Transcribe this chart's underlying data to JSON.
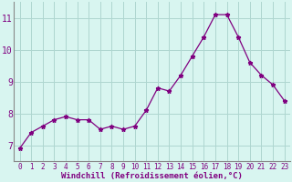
{
  "x": [
    0,
    1,
    2,
    3,
    4,
    5,
    6,
    7,
    8,
    9,
    10,
    11,
    12,
    13,
    14,
    15,
    16,
    17,
    18,
    19,
    20,
    21,
    22,
    23
  ],
  "y": [
    6.9,
    7.4,
    7.6,
    7.8,
    7.9,
    7.8,
    7.8,
    7.5,
    7.6,
    7.5,
    7.6,
    8.1,
    8.8,
    8.7,
    9.2,
    9.8,
    10.4,
    11.1,
    11.1,
    10.4,
    9.6,
    9.2,
    8.9,
    8.4
  ],
  "line_color": "#800080",
  "marker": "*",
  "marker_size": 3.5,
  "background_color": "#d8f5f0",
  "grid_color": "#aed6d0",
  "xlabel": "Windchill (Refroidissement éolien,°C)",
  "xlabel_color": "#800080",
  "tick_color": "#800080",
  "ylim": [
    6.5,
    11.5
  ],
  "xlim": [
    -0.5,
    23.5
  ],
  "yticks": [
    7,
    8,
    9,
    10,
    11
  ],
  "xticks": [
    0,
    1,
    2,
    3,
    4,
    5,
    6,
    7,
    8,
    9,
    10,
    11,
    12,
    13,
    14,
    15,
    16,
    17,
    18,
    19,
    20,
    21,
    22,
    23
  ],
  "spine_color": "#888888",
  "xlabel_fontsize": 6.5,
  "xtick_fontsize": 5.5,
  "ytick_fontsize": 7
}
